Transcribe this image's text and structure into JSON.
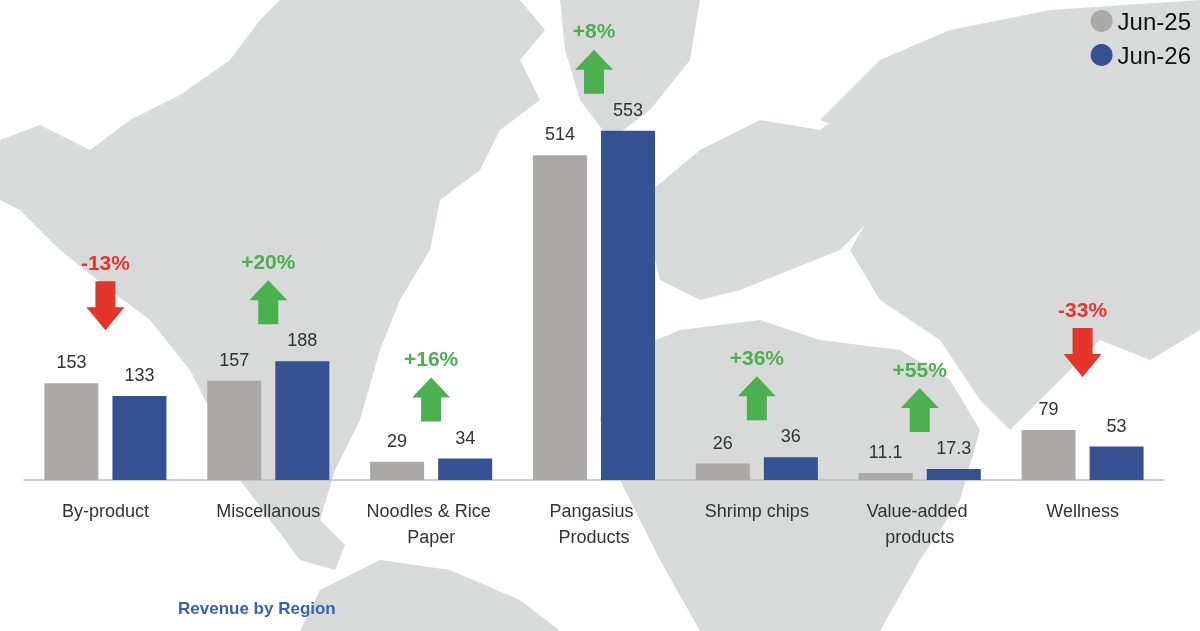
{
  "chart_data": {
    "type": "bar",
    "categories": [
      "By-product",
      "Miscellanous",
      "Noodles & Rice Paper",
      "Pangasius Products",
      "Shrimp chips",
      "Value-added products",
      "Wellness"
    ],
    "series": [
      {
        "name": "Jun-25",
        "color": "#aaa9a8",
        "values": [
          153,
          157,
          29,
          514,
          26,
          11.1,
          79
        ]
      },
      {
        "name": "Jun-26",
        "color": "#365191",
        "values": [
          133,
          188,
          34,
          553,
          36,
          17.3,
          53
        ]
      }
    ],
    "ylim": [
      0,
      760
    ],
    "data_labels": true,
    "legend": "top right",
    "tick_labels": "x",
    "annotations": [
      "-13%",
      "+20%",
      "+16%",
      "+8%",
      "+36%",
      "+55%",
      "-33%",
      "Revenue by Region"
    ]
  }
}
